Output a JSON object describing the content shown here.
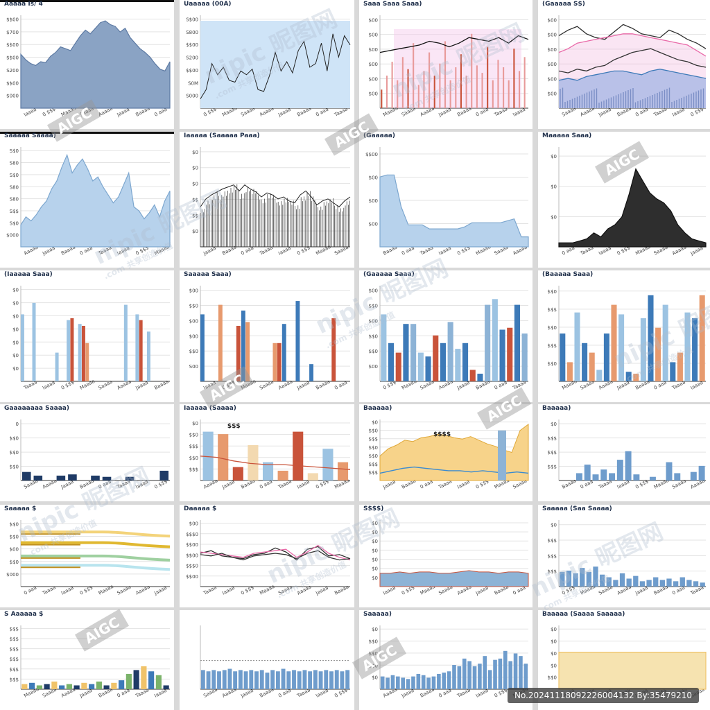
{
  "watermarks": {
    "site": "nipic",
    "cn": "昵图网",
    "sub": ".com 共享创造价值",
    "badge": "AIGC"
  },
  "footer": "No.20241118092226004132 By:35479210",
  "colors": {
    "steel": "#8aa3c4",
    "skyfill": "#cfe4f7",
    "pale": "#b7d2ec",
    "dark": "#2e2e2e",
    "blue": "#3d7ab8",
    "orange": "#e79a6e",
    "red": "#c9533a",
    "lightblue": "#9cc3e2",
    "navy": "#1f3b66",
    "gold": "#f0c36a",
    "pink": "#e96aa8"
  },
  "panels": [
    {
      "title": "Aaaaa Is/ 4",
      "chart_data": {
        "type": "area",
        "values": [
          58,
          52,
          48,
          46,
          50,
          49,
          56,
          60,
          66,
          64,
          62,
          70,
          78,
          84,
          80,
          86,
          92,
          94,
          90,
          88,
          82,
          86,
          76,
          70,
          64,
          60,
          55,
          48,
          42,
          40,
          50
        ],
        "ylim": [
          0,
          100
        ],
        "yticks": [
          "$000",
          "$$00",
          "S200",
          "$$00",
          "$$00",
          "$700",
          "$$00"
        ]
      }
    },
    {
      "title": "Uaaaaa (00A)",
      "chart_data": {
        "type": "line",
        "values": [
          10,
          20,
          48,
          36,
          44,
          30,
          28,
          40,
          36,
          42,
          20,
          18,
          35,
          60,
          40,
          50,
          38,
          62,
          72,
          44,
          48,
          70,
          40,
          80,
          55,
          78,
          68
        ],
        "ylim": [
          0,
          100
        ],
        "yticks": [
          "S000",
          "S0M",
          "$$00",
          "S200",
          "$$00",
          "S800",
          "S$00"
        ]
      }
    },
    {
      "title": "Saaa Saaa Saaa)",
      "chart_data": {
        "type": "bar-line",
        "values": [
          20,
          35,
          50,
          30,
          55,
          42,
          70,
          25,
          40,
          60,
          35,
          48,
          72,
          30,
          44,
          58,
          35,
          80,
          46,
          38,
          66,
          30,
          52,
          44,
          30,
          64,
          40,
          55
        ],
        "line": [
          60,
          62,
          64,
          66,
          68,
          72,
          70,
          66,
          70,
          76,
          74,
          72,
          76,
          70,
          78,
          74
        ],
        "ylim": [
          0,
          100
        ],
        "yticks": [
          "$00",
          "$00",
          "$00",
          "$00",
          "$00",
          "$00"
        ]
      }
    },
    {
      "title": "(Gaaaaa S$)",
      "chart_data": {
        "type": "multi-line",
        "series": [
          {
            "values": [
              78,
              84,
              88,
              80,
              76,
              74,
              82,
              90,
              86,
              80,
              78,
              76,
              84,
              80,
              74,
              70,
              64
            ]
          },
          {
            "values": [
              60,
              64,
              70,
              72,
              74,
              76,
              78,
              80,
              80,
              78,
              76,
              74,
              72,
              70,
              68,
              62,
              56
            ]
          },
          {
            "values": [
              40,
              38,
              42,
              40,
              44,
              46,
              52,
              56,
              60,
              62,
              64,
              60,
              56,
              52,
              50,
              46,
              44
            ]
          },
          {
            "values": [
              30,
              32,
              30,
              34,
              36,
              38,
              40,
              40,
              38,
              36,
              40,
              42,
              40,
              38,
              36,
              34,
              32
            ]
          }
        ],
        "ylim": [
          0,
          100
        ],
        "yticks": [
          "$00",
          "$00",
          "$00",
          "$00",
          "$00",
          "$00"
        ]
      }
    },
    {
      "title": "Saaaaa Saaaa)",
      "chart_data": {
        "type": "area",
        "values": [
          22,
          30,
          26,
          32,
          40,
          46,
          58,
          66,
          80,
          92,
          74,
          82,
          88,
          78,
          66,
          70,
          60,
          52,
          44,
          50,
          62,
          74,
          40,
          36,
          28,
          34,
          42,
          30,
          46,
          56
        ],
        "ylim": [
          0,
          100
        ],
        "yticks": [
          "$000",
          "S$0",
          "S$$",
          "S80",
          "S80",
          "S$0",
          "S80",
          "S$0"
        ]
      }
    },
    {
      "title": "Iaaaaa (Saaaaa Paaa)",
      "chart_data": {
        "type": "spiky",
        "values": [
          40,
          48,
          52,
          55,
          58,
          60,
          62,
          56,
          62,
          58,
          55,
          50,
          54,
          52,
          48,
          50,
          46,
          44,
          52,
          56,
          50,
          42,
          46,
          48,
          44,
          40,
          46,
          50
        ],
        "ylim": [
          0,
          100
        ],
        "yticks": [
          "$0",
          "$$",
          "$$",
          "$0",
          "$0",
          "$0"
        ]
      }
    },
    {
      "title": "(Gaaaaa)",
      "chart_data": {
        "type": "area",
        "values": [
          70,
          72,
          72,
          40,
          22,
          22,
          22,
          18,
          18,
          18,
          18,
          18,
          20,
          24,
          24,
          24,
          24,
          24,
          26,
          28,
          10,
          10
        ],
        "ylim": [
          0,
          100
        ],
        "yticks": [
          "$00",
          "$00",
          "$00",
          "$$00"
        ]
      }
    },
    {
      "title": "Maaaaa Saaa)",
      "chart_data": {
        "type": "spike-area",
        "values": [
          4,
          4,
          4,
          6,
          8,
          14,
          10,
          18,
          22,
          30,
          52,
          78,
          66,
          54,
          48,
          44,
          36,
          22,
          14,
          8,
          6,
          4
        ],
        "ylim": [
          0,
          100
        ],
        "yticks": [
          "$0",
          "$0",
          "$0"
        ]
      }
    },
    {
      "title": "(Iaaaaa Saaa)",
      "chart_data": {
        "type": "grouped-bar",
        "groups": [
          [
            70,
            0,
            0
          ],
          [
            82,
            0,
            0
          ],
          [
            0,
            0,
            0
          ],
          [
            30,
            0,
            0
          ],
          [
            64,
            66,
            0
          ],
          [
            60,
            58,
            40
          ],
          [
            0,
            0,
            0
          ],
          [
            0,
            0,
            0
          ],
          [
            0,
            0,
            0
          ],
          [
            80,
            0,
            0
          ],
          [
            70,
            64,
            0
          ],
          [
            52,
            0,
            0
          ],
          [
            0,
            0,
            0
          ]
        ],
        "ylim": [
          0,
          100
        ],
        "yticks": [
          "$0",
          "$0",
          "$0",
          "$0",
          "$0",
          "$0",
          "$0"
        ]
      }
    },
    {
      "title": "Saaaaa Saaa)",
      "chart_data": {
        "type": "grouped-bar",
        "groups": [
          [
            70,
            0,
            0
          ],
          [
            0,
            80,
            0
          ],
          [
            0,
            0,
            58
          ],
          [
            74,
            62,
            0
          ],
          [
            0,
            0,
            0
          ],
          [
            0,
            40,
            40
          ],
          [
            60,
            0,
            0
          ],
          [
            84,
            0,
            0
          ],
          [
            18,
            0,
            0
          ],
          [
            0,
            0,
            66
          ],
          [
            0,
            0,
            0
          ]
        ],
        "ylim": [
          0,
          100
        ],
        "yticks": [
          "S00",
          "$$0",
          "$00",
          "$00",
          "$$0",
          "$00"
        ]
      }
    },
    {
      "title": "(Gaaaaa Saaa)",
      "chart_data": {
        "type": "dense-bar",
        "values": [
          70,
          40,
          30,
          60,
          60,
          30,
          26,
          48,
          40,
          62,
          34,
          40,
          12,
          8,
          80,
          86,
          54,
          56,
          80,
          50
        ],
        "ylim": [
          0,
          100
        ],
        "yticks": [
          "$00",
          "$$0",
          "$$0",
          "$00",
          "$$0",
          "$00"
        ]
      }
    },
    {
      "title": "(Baaaaa Saaa)",
      "chart_data": {
        "type": "dense-bar",
        "values": [
          50,
          20,
          72,
          40,
          30,
          12,
          50,
          80,
          70,
          10,
          8,
          66,
          90,
          56,
          80,
          20,
          30,
          72,
          66,
          90
        ],
        "ylim": [
          0,
          100
        ],
        "yticks": [
          "$$0",
          "$$$",
          "$$0",
          "$$$",
          "$$0"
        ]
      }
    },
    {
      "title": "Gaaaaaaaa Saaaa)",
      "chart_data": {
        "type": "sparse-bar",
        "values": [
          14,
          8,
          0,
          8,
          10,
          0,
          8,
          6,
          0,
          6,
          0,
          0,
          16
        ],
        "ylim": [
          0,
          100
        ],
        "yticks": [
          "$$0",
          "$$0",
          "$$0",
          "0"
        ]
      }
    },
    {
      "title": "Iaaaaa (Saaaa)",
      "chart_data": {
        "type": "bar-line",
        "values": [
          80,
          76,
          22,
          58,
          30,
          16,
          80,
          12,
          52,
          30
        ],
        "line": [
          40,
          38,
          32,
          28,
          26,
          26,
          24,
          22,
          20,
          18
        ],
        "ylim": [
          0,
          100
        ],
        "yticks": [
          "$$$",
          "$$0",
          "$$$",
          "$$0",
          "$0"
        ],
        "annotation": "$$$"
      }
    },
    {
      "title": "Baaaaa)",
      "chart_data": {
        "type": "area-bar",
        "values": [
          40,
          52,
          58,
          66,
          64,
          70,
          72,
          76,
          74,
          70,
          68,
          72,
          66,
          60,
          56,
          50,
          46,
          82,
          92
        ],
        "line": [
          12,
          16,
          20,
          22,
          20,
          18,
          16,
          16,
          14,
          16,
          14,
          12,
          14,
          12
        ],
        "ylim": [
          0,
          100
        ],
        "yticks": [
          "$$$",
          "$$$",
          "$$0",
          "$$0",
          "$$$",
          "$$0",
          "$0"
        ],
        "annotation": "$$$$"
      }
    },
    {
      "title": "Baaaaa)",
      "chart_data": {
        "type": "sparse-bar",
        "values": [
          0,
          0,
          12,
          26,
          10,
          18,
          12,
          34,
          48,
          10,
          0,
          6,
          0,
          30,
          12,
          0,
          14,
          24
        ],
        "ylim": [
          0,
          100
        ],
        "yticks": [
          "$$$",
          "$$$",
          "$$$",
          "$0"
        ]
      }
    },
    {
      "title": "Saaaaa $",
      "chart_data": {
        "type": "bands",
        "values": [
          82,
          66,
          46,
          32
        ],
        "ylim": [
          0,
          100
        ],
        "yticks": [
          "$000",
          "$$0",
          "$00",
          "$$0",
          "$$0"
        ]
      }
    },
    {
      "title": "Daaaaa $",
      "chart_data": {
        "type": "multi-line",
        "series": [
          {
            "values": [
              50,
              54,
              46,
              44,
              42,
              48,
              50,
              58,
              52,
              40,
              56,
              60,
              46,
              48,
              42
            ]
          },
          {
            "values": [
              52,
              50,
              48,
              46,
              44,
              50,
              52,
              54,
              56,
              44,
              52,
              62,
              50,
              44,
              40
            ]
          },
          {
            "values": [
              48,
              46,
              50,
              44,
              40,
              46,
              48,
              50,
              48,
              42,
              50,
              54,
              44,
              40,
              42
            ]
          }
        ],
        "ylim": [
          0,
          100
        ],
        "yticks": [
          "$$00",
          "$$$0",
          "$$00",
          "$$00",
          "$$$0",
          "$00"
        ]
      }
    },
    {
      "title": "S$$$)",
      "chart_data": {
        "type": "flat-area",
        "values": [
          20,
          20,
          22,
          20,
          22,
          22,
          20,
          20,
          22,
          24,
          22,
          22,
          20,
          22,
          22,
          20
        ],
        "ylim": [
          0,
          100
        ],
        "yticks": [
          "$0",
          "$0",
          "$0",
          "$0",
          "$0",
          "$0",
          "$0"
        ]
      }
    },
    {
      "title": "Saaaaa (Saa Saaaa)",
      "chart_data": {
        "type": "dense-bar",
        "values": [
          22,
          24,
          20,
          28,
          22,
          30,
          18,
          14,
          10,
          20,
          12,
          16,
          8,
          10,
          14,
          10,
          12,
          8,
          14,
          10,
          8,
          6
        ],
        "ylim": [
          0,
          100
        ],
        "yticks": [
          "$$$",
          "$$$",
          "$$$",
          "$0"
        ]
      }
    },
    {
      "title": "S Aaaaaa $",
      "chart_data": {
        "type": "dense-bar",
        "values": [
          8,
          10,
          6,
          8,
          12,
          6,
          8,
          6,
          10,
          8,
          12,
          6,
          10,
          14,
          24,
          30,
          36,
          28,
          22,
          6
        ],
        "ylim": [
          0,
          100
        ],
        "yticks": [
          "$$$",
          "$$$",
          "$$$",
          "$$$",
          "$$$",
          "$$$"
        ]
      }
    },
    {
      "title": "",
      "chart_data": {
        "type": "dense-bar",
        "values": [
          30,
          28,
          30,
          28,
          30,
          32,
          28,
          30,
          28,
          30,
          28,
          30,
          26,
          30,
          28,
          32,
          28,
          30,
          28,
          30,
          28,
          30,
          28,
          30,
          28,
          30,
          28,
          30
        ],
        "ylim": [
          0,
          100
        ],
        "yticks": []
      }
    },
    {
      "title": "Saaaaa)",
      "chart_data": {
        "type": "dense-bar",
        "values": [
          20,
          18,
          22,
          20,
          18,
          16,
          20,
          24,
          22,
          18,
          20,
          24,
          26,
          28,
          38,
          36,
          48,
          44,
          36,
          40,
          52,
          30,
          46,
          48,
          60,
          44,
          56,
          52,
          40
        ],
        "ylim": [
          0,
          100
        ],
        "yticks": [
          "$0",
          "$$0",
          "$$0",
          "$$0",
          "$0"
        ]
      }
    },
    {
      "title": "Baaaaa (Saaaa Saaaaa)",
      "chart_data": {
        "type": "flat-area",
        "values": [
          58,
          58,
          58,
          58,
          58,
          58,
          58,
          58,
          58,
          58,
          58,
          58
        ],
        "ylim": [
          0,
          100
        ],
        "yticks": [
          "$$0",
          "$0",
          "$0",
          "$0",
          "$0"
        ]
      }
    }
  ]
}
